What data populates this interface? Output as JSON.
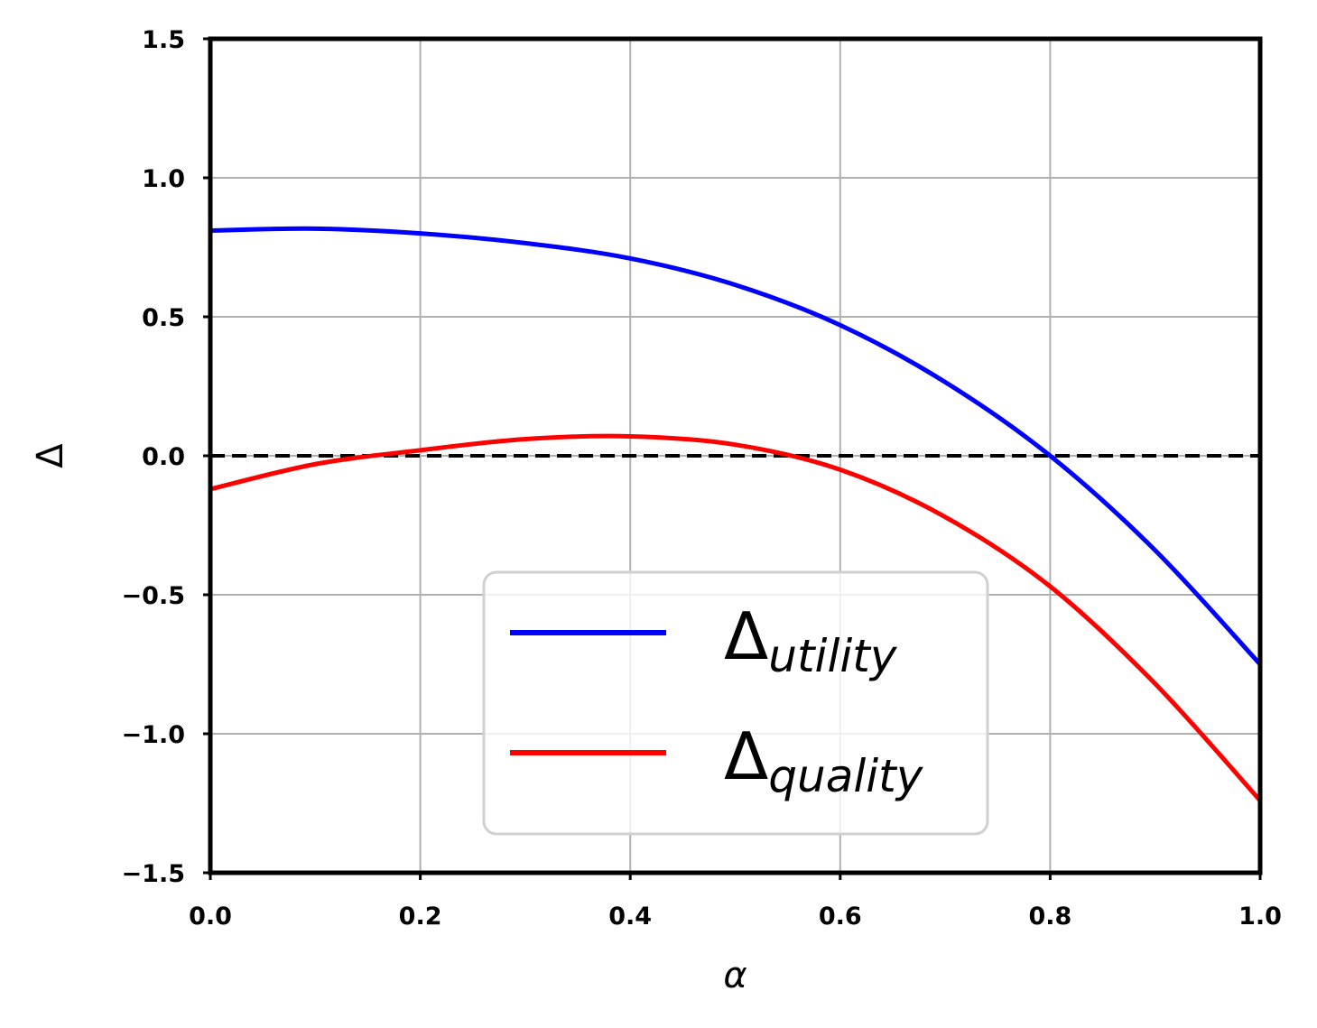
{
  "chart_data": {
    "type": "line",
    "xlabel": "α",
    "ylabel": "Δ",
    "xlim": [
      0.0,
      1.0
    ],
    "ylim": [
      -1.5,
      1.5
    ],
    "x_ticks": [
      "0.0",
      "0.2",
      "0.4",
      "0.6",
      "0.8",
      "1.0"
    ],
    "y_ticks": [
      "−1.5",
      "−1.0",
      "−0.5",
      "0.0",
      "0.5",
      "1.0",
      "1.5"
    ],
    "grid": true,
    "legend_position": "lower-center",
    "reference_line": {
      "y": 0.0,
      "style": "dashed",
      "color": "#000000"
    },
    "x": [
      0.0,
      0.1,
      0.2,
      0.3,
      0.4,
      0.5,
      0.6,
      0.7,
      0.8,
      0.9,
      1.0
    ],
    "series": [
      {
        "name_main": "Δ",
        "name_sub": "utility",
        "color": "#0000ff",
        "values": [
          0.81,
          0.817,
          0.8,
          0.765,
          0.71,
          0.615,
          0.47,
          0.265,
          0.0,
          -0.34,
          -0.75
        ]
      },
      {
        "name_main": "Δ",
        "name_sub": "quality",
        "color": "#ff0000",
        "values": [
          -0.12,
          -0.03,
          0.02,
          0.06,
          0.07,
          0.04,
          -0.05,
          -0.22,
          -0.47,
          -0.82,
          -1.24
        ]
      }
    ]
  }
}
